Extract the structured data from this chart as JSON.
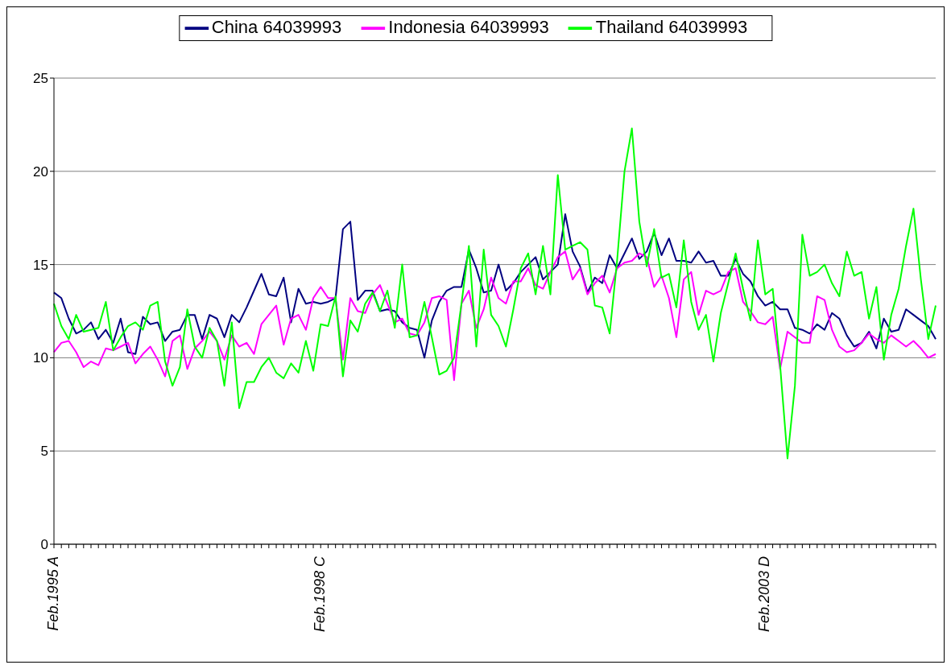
{
  "chart_data": {
    "type": "line",
    "categories": [
      "Feb.1995 A",
      null,
      null,
      null,
      null,
      null,
      null,
      null,
      null,
      null,
      null,
      null,
      null,
      null,
      null,
      null,
      null,
      null,
      null,
      null,
      null,
      null,
      null,
      null,
      null,
      null,
      null,
      null,
      null,
      null,
      null,
      null,
      null,
      null,
      null,
      null,
      "Feb.1998 C",
      null,
      null,
      null,
      null,
      null,
      null,
      null,
      null,
      null,
      null,
      null,
      null,
      null,
      null,
      null,
      null,
      null,
      null,
      null,
      null,
      null,
      null,
      null,
      null,
      null,
      null,
      null,
      null,
      null,
      null,
      null,
      null,
      null,
      null,
      null,
      null,
      null,
      null,
      null,
      null,
      null,
      null,
      null,
      null,
      null,
      null,
      null,
      null,
      null,
      null,
      null,
      null,
      null,
      null,
      null,
      null,
      null,
      null,
      null,
      "Feb.2003 D",
      null,
      null,
      null,
      null,
      null,
      null,
      null,
      null,
      null,
      null,
      null,
      null,
      null,
      null,
      null,
      null,
      null,
      null,
      null,
      null,
      null,
      null,
      null
    ],
    "series": [
      {
        "name": "China 64039993",
        "color": "#000080",
        "values": [
          13.5,
          13.2,
          12.1,
          11.3,
          11.5,
          11.9,
          11.0,
          11.5,
          10.8,
          12.1,
          10.3,
          10.2,
          12.2,
          11.8,
          11.9,
          10.9,
          11.4,
          11.5,
          12.3,
          12.3,
          11.0,
          12.3,
          12.1,
          11.1,
          12.3,
          11.9,
          12.7,
          13.6,
          14.5,
          13.4,
          13.3,
          14.3,
          11.9,
          13.7,
          12.9,
          13.0,
          12.9,
          13.0,
          13.2,
          16.9,
          17.3,
          13.1,
          13.6,
          13.6,
          12.5,
          12.6,
          12.5,
          11.9,
          11.6,
          11.5,
          10.0,
          12.0,
          13.0,
          13.6,
          13.8,
          13.8,
          15.8,
          14.8,
          13.5,
          13.6,
          15.0,
          13.6,
          14.0,
          14.6,
          15.0,
          15.4,
          14.2,
          14.6,
          15.0,
          17.7,
          15.7,
          14.9,
          13.5,
          14.3,
          14.0,
          15.5,
          14.8,
          15.6,
          16.4,
          15.3,
          15.7,
          16.7,
          15.5,
          16.4,
          15.2,
          15.2,
          15.1,
          15.7,
          15.1,
          15.2,
          14.4,
          14.4,
          15.3,
          14.5,
          14.1,
          13.3,
          12.8,
          13.0,
          12.6,
          12.6,
          11.6,
          11.5,
          11.3,
          11.8,
          11.5,
          12.4,
          12.1,
          11.2,
          10.6,
          10.8,
          11.4,
          10.5,
          12.1,
          11.4,
          11.5,
          12.6,
          12.3,
          12.0,
          11.7,
          11.0
        ]
      },
      {
        "name": "Indonesia 64039993",
        "color": "#ff00ff",
        "values": [
          10.3,
          10.8,
          10.9,
          10.3,
          9.5,
          9.8,
          9.6,
          10.5,
          10.4,
          10.6,
          10.8,
          9.7,
          10.2,
          10.6,
          9.9,
          9.0,
          10.9,
          11.2,
          9.4,
          10.5,
          10.9,
          11.4,
          10.9,
          9.9,
          11.2,
          10.6,
          10.8,
          10.2,
          11.8,
          12.3,
          12.8,
          10.7,
          12.1,
          12.3,
          11.5,
          13.2,
          13.8,
          13.2,
          13.2,
          9.9,
          13.2,
          12.5,
          12.4,
          13.4,
          13.9,
          12.9,
          11.9,
          12.1,
          11.3,
          11.2,
          11.9,
          13.2,
          13.3,
          13.1,
          8.8,
          12.9,
          13.6,
          11.6,
          12.6,
          14.3,
          13.2,
          12.9,
          14.1,
          14.1,
          14.8,
          13.9,
          13.7,
          14.6,
          15.4,
          15.7,
          14.2,
          14.8,
          13.4,
          14.0,
          14.4,
          13.5,
          14.8,
          15.1,
          15.2,
          15.6,
          15.4,
          13.8,
          14.4,
          13.2,
          11.1,
          14.2,
          14.6,
          12.3,
          13.6,
          13.4,
          13.6,
          14.6,
          14.8,
          13.0,
          12.5,
          11.9,
          11.8,
          12.2,
          9.4,
          11.4,
          11.1,
          10.8,
          10.8,
          13.3,
          13.1,
          11.5,
          10.6,
          10.3,
          10.4,
          10.8,
          11.3,
          11.0,
          10.8,
          11.2,
          10.9,
          10.6,
          10.9,
          10.5,
          10.0,
          10.2
        ]
      },
      {
        "name": "Thailand 64039993",
        "color": "#00ff00",
        "values": [
          12.9,
          11.7,
          11.0,
          12.3,
          11.4,
          11.5,
          11.6,
          13.0,
          10.4,
          11.1,
          11.7,
          11.9,
          11.5,
          12.8,
          13.0,
          9.8,
          8.5,
          9.5,
          12.6,
          10.6,
          10.0,
          11.6,
          10.9,
          8.5,
          11.9,
          7.3,
          8.7,
          8.7,
          9.5,
          10.0,
          9.2,
          8.9,
          9.7,
          9.2,
          10.9,
          9.3,
          11.8,
          11.7,
          13.3,
          9.0,
          12.0,
          11.4,
          12.9,
          13.5,
          12.5,
          13.6,
          11.6,
          15.0,
          11.1,
          11.2,
          13.0,
          11.1,
          9.1,
          9.3,
          10.0,
          12.9,
          16.0,
          10.6,
          15.8,
          12.3,
          11.7,
          10.6,
          12.6,
          14.8,
          15.6,
          13.4,
          16.0,
          13.4,
          19.8,
          15.8,
          16.0,
          16.2,
          15.8,
          12.8,
          12.7,
          11.3,
          15.2,
          20.0,
          22.3,
          17.3,
          14.9,
          16.9,
          14.3,
          14.5,
          12.7,
          16.3,
          13.0,
          11.5,
          12.3,
          9.8,
          12.4,
          14.0,
          15.6,
          13.7,
          12.0,
          16.3,
          13.4,
          13.7,
          9.6,
          4.6,
          8.5,
          16.6,
          14.4,
          14.6,
          15.0,
          14.0,
          13.3,
          15.7,
          14.4,
          14.6,
          12.1,
          13.8,
          9.9,
          12.3,
          13.7,
          16.0,
          18.0,
          14.2,
          11.0,
          12.8
        ]
      }
    ],
    "ylim": [
      0,
      25
    ],
    "yticks": [
      0,
      5,
      10,
      15,
      20,
      25
    ],
    "grid": "y",
    "legend": "top",
    "marker": "none",
    "line_style": "solid"
  }
}
